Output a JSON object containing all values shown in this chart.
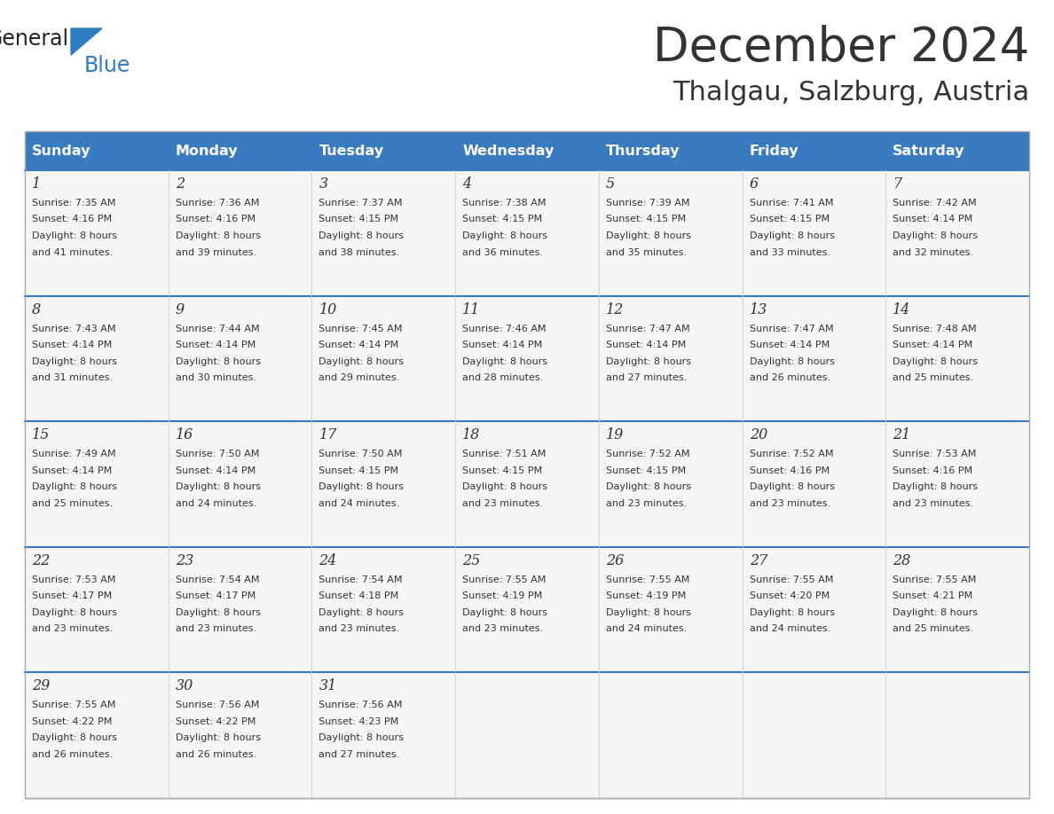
{
  "title": "December 2024",
  "subtitle": "Thalgau, Salzburg, Austria",
  "header_color": "#3A7ABF",
  "header_text_color": "#FFFFFF",
  "day_names": [
    "Sunday",
    "Monday",
    "Tuesday",
    "Wednesday",
    "Thursday",
    "Friday",
    "Saturday"
  ],
  "separator_color": "#3A7ABF",
  "text_color": "#333333",
  "logo_general_color": "#222222",
  "logo_blue_color": "#2E7BBF",
  "days": [
    {
      "day": 1,
      "col": 0,
      "row": 0,
      "sunrise": "7:35 AM",
      "sunset": "4:16 PM",
      "daylight_min": "41"
    },
    {
      "day": 2,
      "col": 1,
      "row": 0,
      "sunrise": "7:36 AM",
      "sunset": "4:16 PM",
      "daylight_min": "39"
    },
    {
      "day": 3,
      "col": 2,
      "row": 0,
      "sunrise": "7:37 AM",
      "sunset": "4:15 PM",
      "daylight_min": "38"
    },
    {
      "day": 4,
      "col": 3,
      "row": 0,
      "sunrise": "7:38 AM",
      "sunset": "4:15 PM",
      "daylight_min": "36"
    },
    {
      "day": 5,
      "col": 4,
      "row": 0,
      "sunrise": "7:39 AM",
      "sunset": "4:15 PM",
      "daylight_min": "35"
    },
    {
      "day": 6,
      "col": 5,
      "row": 0,
      "sunrise": "7:41 AM",
      "sunset": "4:15 PM",
      "daylight_min": "33"
    },
    {
      "day": 7,
      "col": 6,
      "row": 0,
      "sunrise": "7:42 AM",
      "sunset": "4:14 PM",
      "daylight_min": "32"
    },
    {
      "day": 8,
      "col": 0,
      "row": 1,
      "sunrise": "7:43 AM",
      "sunset": "4:14 PM",
      "daylight_min": "31"
    },
    {
      "day": 9,
      "col": 1,
      "row": 1,
      "sunrise": "7:44 AM",
      "sunset": "4:14 PM",
      "daylight_min": "30"
    },
    {
      "day": 10,
      "col": 2,
      "row": 1,
      "sunrise": "7:45 AM",
      "sunset": "4:14 PM",
      "daylight_min": "29"
    },
    {
      "day": 11,
      "col": 3,
      "row": 1,
      "sunrise": "7:46 AM",
      "sunset": "4:14 PM",
      "daylight_min": "28"
    },
    {
      "day": 12,
      "col": 4,
      "row": 1,
      "sunrise": "7:47 AM",
      "sunset": "4:14 PM",
      "daylight_min": "27"
    },
    {
      "day": 13,
      "col": 5,
      "row": 1,
      "sunrise": "7:47 AM",
      "sunset": "4:14 PM",
      "daylight_min": "26"
    },
    {
      "day": 14,
      "col": 6,
      "row": 1,
      "sunrise": "7:48 AM",
      "sunset": "4:14 PM",
      "daylight_min": "25"
    },
    {
      "day": 15,
      "col": 0,
      "row": 2,
      "sunrise": "7:49 AM",
      "sunset": "4:14 PM",
      "daylight_min": "25"
    },
    {
      "day": 16,
      "col": 1,
      "row": 2,
      "sunrise": "7:50 AM",
      "sunset": "4:14 PM",
      "daylight_min": "24"
    },
    {
      "day": 17,
      "col": 2,
      "row": 2,
      "sunrise": "7:50 AM",
      "sunset": "4:15 PM",
      "daylight_min": "24"
    },
    {
      "day": 18,
      "col": 3,
      "row": 2,
      "sunrise": "7:51 AM",
      "sunset": "4:15 PM",
      "daylight_min": "23"
    },
    {
      "day": 19,
      "col": 4,
      "row": 2,
      "sunrise": "7:52 AM",
      "sunset": "4:15 PM",
      "daylight_min": "23"
    },
    {
      "day": 20,
      "col": 5,
      "row": 2,
      "sunrise": "7:52 AM",
      "sunset": "4:16 PM",
      "daylight_min": "23"
    },
    {
      "day": 21,
      "col": 6,
      "row": 2,
      "sunrise": "7:53 AM",
      "sunset": "4:16 PM",
      "daylight_min": "23"
    },
    {
      "day": 22,
      "col": 0,
      "row": 3,
      "sunrise": "7:53 AM",
      "sunset": "4:17 PM",
      "daylight_min": "23"
    },
    {
      "day": 23,
      "col": 1,
      "row": 3,
      "sunrise": "7:54 AM",
      "sunset": "4:17 PM",
      "daylight_min": "23"
    },
    {
      "day": 24,
      "col": 2,
      "row": 3,
      "sunrise": "7:54 AM",
      "sunset": "4:18 PM",
      "daylight_min": "23"
    },
    {
      "day": 25,
      "col": 3,
      "row": 3,
      "sunrise": "7:55 AM",
      "sunset": "4:19 PM",
      "daylight_min": "23"
    },
    {
      "day": 26,
      "col": 4,
      "row": 3,
      "sunrise": "7:55 AM",
      "sunset": "4:19 PM",
      "daylight_min": "24"
    },
    {
      "day": 27,
      "col": 5,
      "row": 3,
      "sunrise": "7:55 AM",
      "sunset": "4:20 PM",
      "daylight_min": "24"
    },
    {
      "day": 28,
      "col": 6,
      "row": 3,
      "sunrise": "7:55 AM",
      "sunset": "4:21 PM",
      "daylight_min": "25"
    },
    {
      "day": 29,
      "col": 0,
      "row": 4,
      "sunrise": "7:55 AM",
      "sunset": "4:22 PM",
      "daylight_min": "26"
    },
    {
      "day": 30,
      "col": 1,
      "row": 4,
      "sunrise": "7:56 AM",
      "sunset": "4:22 PM",
      "daylight_min": "26"
    },
    {
      "day": 31,
      "col": 2,
      "row": 4,
      "sunrise": "7:56 AM",
      "sunset": "4:23 PM",
      "daylight_min": "27"
    }
  ]
}
